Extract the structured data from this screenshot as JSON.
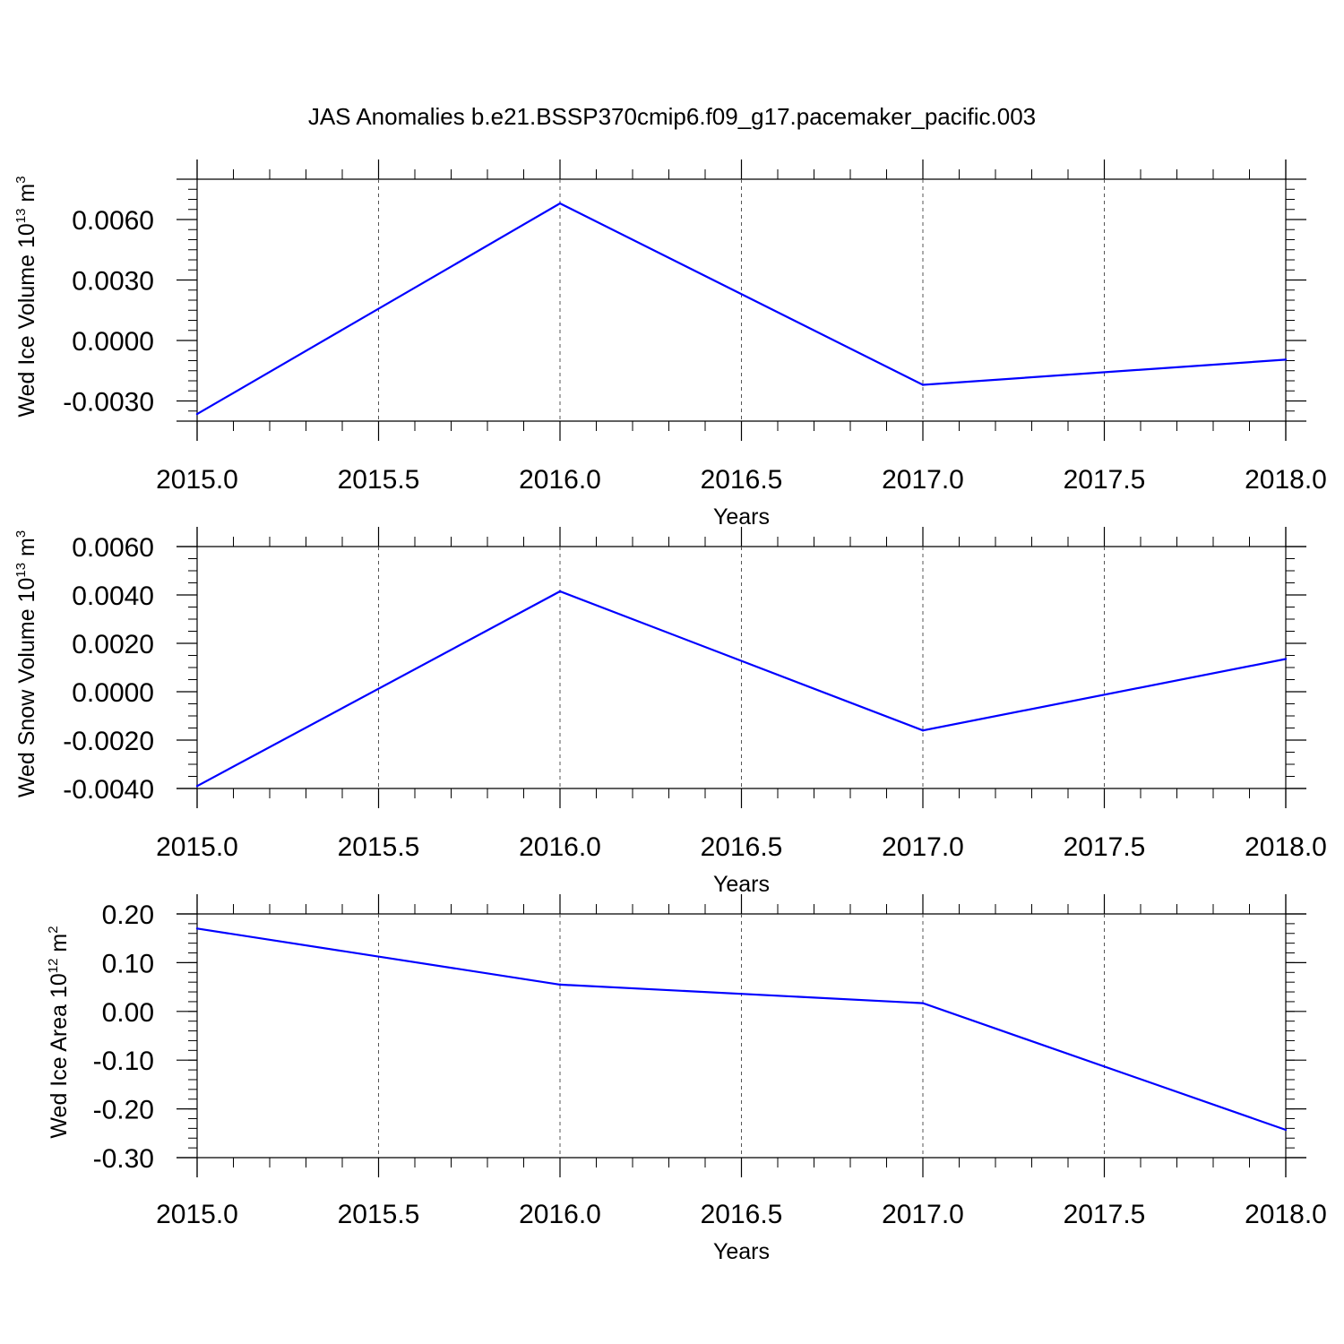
{
  "chart_data": [
    {
      "type": "line",
      "title": "JAS Anomalies b.e21.BSSP370cmip6.f09_g17.pacemaker_pacific.003",
      "ylabel": {
        "base": "Wed Ice Volume 10",
        "exponent": "13",
        "unit": " m",
        "unit_exponent": "3"
      },
      "xlabel": "Years",
      "xlim": [
        2015.0,
        2018.0
      ],
      "ylim": [
        -0.004,
        0.008
      ],
      "x_ticks": [
        2015.0,
        2015.5,
        2016.0,
        2016.5,
        2017.0,
        2017.5,
        2018.0
      ],
      "x_tick_labels": [
        "2015.0",
        "2015.5",
        "2016.0",
        "2016.5",
        "2017.0",
        "2017.5",
        "2018.0"
      ],
      "y_ticks": [
        -0.003,
        0.0,
        0.003,
        0.006
      ],
      "y_tick_labels": [
        "-0.0030",
        "0.0000",
        "0.0030",
        "0.0060"
      ],
      "y_minor_step": 0.0005,
      "x": [
        2015,
        2016,
        2017,
        2018
      ],
      "series": [
        {
          "values": [
            -0.00365,
            0.0068,
            -0.0022,
            -0.00095
          ],
          "color": "#0000ff"
        }
      ],
      "grid": "vertical dashed at x ticks",
      "line_color": "#0000ff"
    },
    {
      "type": "line",
      "ylabel": {
        "base": "Wed Snow Volume 10",
        "exponent": "13",
        "unit": " m",
        "unit_exponent": "3"
      },
      "xlabel": "Years",
      "xlim": [
        2015.0,
        2018.0
      ],
      "ylim": [
        -0.004,
        0.006
      ],
      "x_ticks": [
        2015.0,
        2015.5,
        2016.0,
        2016.5,
        2017.0,
        2017.5,
        2018.0
      ],
      "x_tick_labels": [
        "2015.0",
        "2015.5",
        "2016.0",
        "2016.5",
        "2017.0",
        "2017.5",
        "2018.0"
      ],
      "y_ticks": [
        -0.004,
        -0.002,
        0.0,
        0.002,
        0.004,
        0.006
      ],
      "y_tick_labels": [
        "-0.0040",
        "-0.0020",
        "0.0000",
        "0.0020",
        "0.0040",
        "0.0060"
      ],
      "y_minor_step": 0.0005,
      "x": [
        2015,
        2016,
        2017,
        2018
      ],
      "series": [
        {
          "values": [
            -0.0039,
            0.00415,
            -0.0016,
            0.00135
          ],
          "color": "#0000ff"
        }
      ],
      "grid": "vertical dashed at x ticks",
      "line_color": "#0000ff"
    },
    {
      "type": "line",
      "ylabel": {
        "base": "Wed Ice Area 10",
        "exponent": "12",
        "unit": " m",
        "unit_exponent": "2"
      },
      "xlabel": "Years",
      "xlim": [
        2015.0,
        2018.0
      ],
      "ylim": [
        -0.3,
        0.2
      ],
      "x_ticks": [
        2015.0,
        2015.5,
        2016.0,
        2016.5,
        2017.0,
        2017.5,
        2018.0
      ],
      "x_tick_labels": [
        "2015.0",
        "2015.5",
        "2016.0",
        "2016.5",
        "2017.0",
        "2017.5",
        "2018.0"
      ],
      "y_ticks": [
        -0.3,
        -0.2,
        -0.1,
        0.0,
        0.1,
        0.2
      ],
      "y_tick_labels": [
        "-0.30",
        "-0.20",
        "-0.10",
        "0.00",
        "0.10",
        "0.20"
      ],
      "y_minor_step": 0.02,
      "x": [
        2015,
        2016,
        2017,
        2018
      ],
      "series": [
        {
          "values": [
            0.17,
            0.055,
            0.017,
            -0.243
          ],
          "color": "#0000ff"
        }
      ],
      "grid": "vertical dashed at x ticks",
      "line_color": "#0000ff"
    }
  ]
}
